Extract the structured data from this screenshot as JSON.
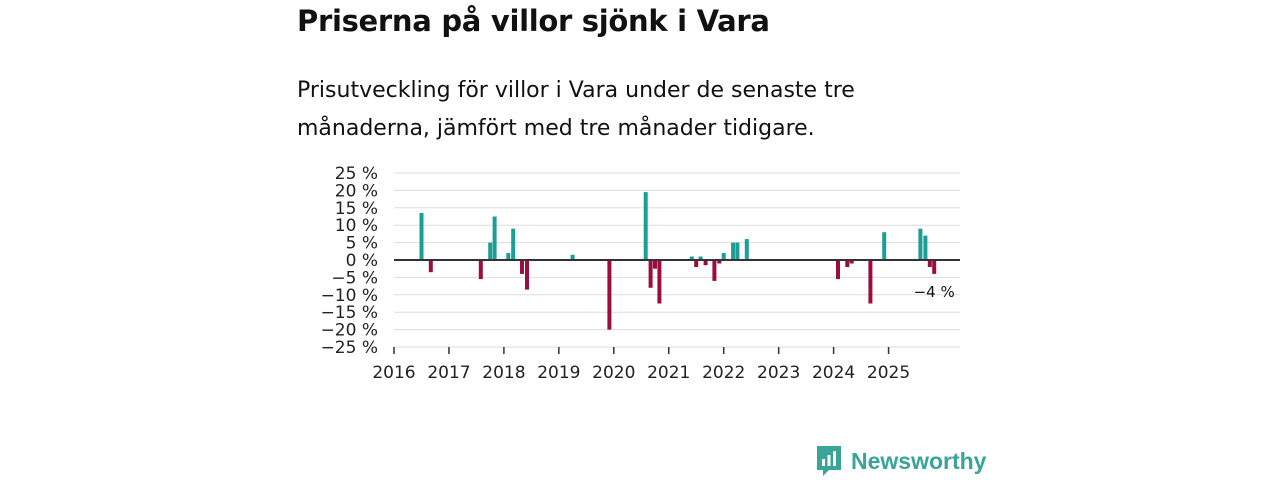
{
  "title": "Priserna på villor sjönk i Vara",
  "subtitle": "Prisutveckling för villor i Vara under de senaste tre månaderna, jämfört med tre månader tidigare.",
  "brand": {
    "name": "Newsworthy",
    "icon": "newsworthy-logo-icon"
  },
  "colors": {
    "positive": "#1a9e96",
    "negative": "#9b0d3f",
    "zero_line": "#333333",
    "grid": "#dddddd",
    "brand": "#3aa39a"
  },
  "chart_data": {
    "type": "bar",
    "title": "Priserna på villor sjönk i Vara",
    "xlabel": "",
    "ylabel": "",
    "ylim": [
      -25,
      25
    ],
    "y_ticks": [
      25,
      20,
      15,
      10,
      5,
      0,
      -5,
      -10,
      -15,
      -20,
      -25
    ],
    "y_tick_labels": [
      "25 %",
      "20 %",
      "15 %",
      "10 %",
      "5 %",
      "0 %",
      "−5 %",
      "−10 %",
      "−15 %",
      "−20 %",
      "−25 %"
    ],
    "xlim": [
      2016.0,
      2026.3
    ],
    "x_ticks": [
      2016,
      2017,
      2018,
      2019,
      2020,
      2021,
      2022,
      2023,
      2024,
      2025
    ],
    "x_tick_labels": [
      "2016",
      "2017",
      "2018",
      "2019",
      "2020",
      "2021",
      "2022",
      "2023",
      "2024",
      "2025"
    ],
    "grid": true,
    "series": [
      {
        "name": "Prisutveckling",
        "points": [
          {
            "date": 2016.5,
            "value": 13.5
          },
          {
            "date": 2016.67,
            "value": -3.5
          },
          {
            "date": 2017.58,
            "value": -5.5
          },
          {
            "date": 2017.75,
            "value": 5
          },
          {
            "date": 2017.83,
            "value": 12.5
          },
          {
            "date": 2018.08,
            "value": 2
          },
          {
            "date": 2018.17,
            "value": 9
          },
          {
            "date": 2018.33,
            "value": -4
          },
          {
            "date": 2018.42,
            "value": -8.5
          },
          {
            "date": 2019.25,
            "value": 1.5
          },
          {
            "date": 2019.92,
            "value": -20
          },
          {
            "date": 2020.58,
            "value": 19.5
          },
          {
            "date": 2020.67,
            "value": -8
          },
          {
            "date": 2020.75,
            "value": -2.5
          },
          {
            "date": 2020.83,
            "value": -12.5
          },
          {
            "date": 2021.42,
            "value": 1
          },
          {
            "date": 2021.5,
            "value": -2
          },
          {
            "date": 2021.58,
            "value": 1
          },
          {
            "date": 2021.67,
            "value": -1.5
          },
          {
            "date": 2021.83,
            "value": -6
          },
          {
            "date": 2021.92,
            "value": -1
          },
          {
            "date": 2022.0,
            "value": 2
          },
          {
            "date": 2022.17,
            "value": 5
          },
          {
            "date": 2022.25,
            "value": 5
          },
          {
            "date": 2022.42,
            "value": 6
          },
          {
            "date": 2024.08,
            "value": -5.5
          },
          {
            "date": 2024.25,
            "value": -2
          },
          {
            "date": 2024.33,
            "value": -1
          },
          {
            "date": 2024.67,
            "value": -12.5
          },
          {
            "date": 2024.92,
            "value": 8
          },
          {
            "date": 2025.58,
            "value": 9
          },
          {
            "date": 2025.67,
            "value": 7
          },
          {
            "date": 2025.75,
            "value": -2
          },
          {
            "date": 2025.83,
            "value": -4
          }
        ]
      }
    ],
    "annotations": [
      {
        "text": "−4 %",
        "date": 2025.83,
        "value": -4
      }
    ]
  }
}
